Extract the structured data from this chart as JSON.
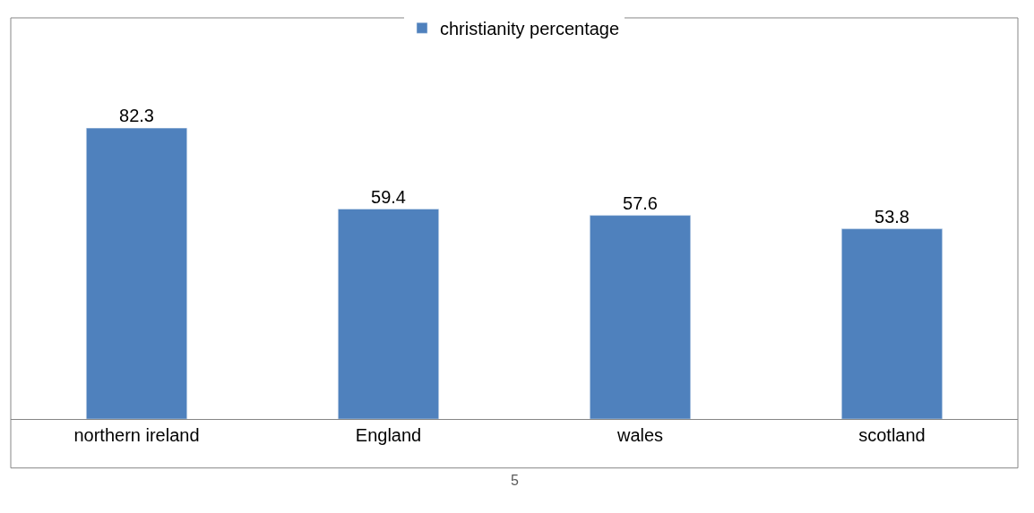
{
  "chart_data": {
    "type": "bar",
    "categories": [
      "northern ireland",
      "England",
      "wales",
      "scotland"
    ],
    "series": [
      {
        "name": "christianity percentage",
        "color": "#4f81bd",
        "values": [
          82.3,
          59.4,
          57.6,
          53.8
        ]
      }
    ],
    "data_labels": true,
    "legend": "top",
    "annotations": [
      "5"
    ]
  }
}
